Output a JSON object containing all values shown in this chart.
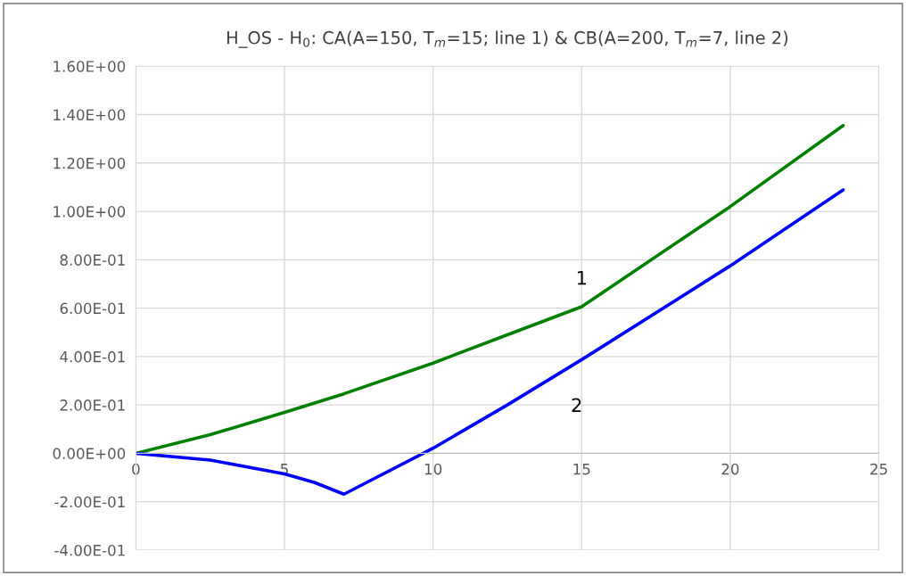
{
  "chart_data": {
    "type": "line",
    "title": "H_OS - H$_{0}$: CA(A=150, T$_{m}$=15; line 1) & CB(A=200, T$_{m}$=7, line 2)",
    "series": [
      {
        "name": null,
        "color": "#008000",
        "x": [
          0,
          2.5,
          5,
          7,
          10,
          12.5,
          15,
          20,
          23.8
        ],
        "values": [
          0,
          0.077,
          0.169,
          0.246,
          0.373,
          0.49,
          0.606,
          1.02,
          1.355
        ]
      },
      {
        "name": null,
        "color": "#0000ff",
        "x": [
          0,
          2.5,
          5,
          6,
          7,
          10,
          12.5,
          15,
          20,
          23.8
        ],
        "values": [
          0,
          -0.028,
          -0.085,
          -0.12,
          -0.169,
          0.021,
          0.2,
          0.387,
          0.775,
          1.089
        ]
      }
    ],
    "annotations": [
      "1",
      "2"
    ],
    "xlim": [
      0,
      25
    ],
    "xticks": [
      0,
      5,
      10,
      15,
      20,
      25
    ],
    "ylim": [
      -0.4,
      1.6
    ],
    "yticks": [
      {
        "value": -0.4,
        "label": "-4.00E-01"
      },
      {
        "value": -0.2,
        "label": "-2.00E-01"
      },
      {
        "value": 0,
        "label": "0.00E+00"
      },
      {
        "value": 0.2,
        "label": "2.00E-01"
      },
      {
        "value": 0.4,
        "label": "4.00E-01"
      },
      {
        "value": 0.6,
        "label": "6.00E-01"
      },
      {
        "value": 0.8,
        "label": "8.00E-01"
      },
      {
        "value": 1.0,
        "label": "1.00E+00"
      },
      {
        "value": 1.2,
        "label": "1.20E+00"
      },
      {
        "value": 1.4,
        "label": "1.40E+00"
      },
      {
        "value": 1.6,
        "label": "1.60E+00"
      }
    ],
    "grid": true,
    "legend": false,
    "marker": "none",
    "line_style": "solid"
  }
}
